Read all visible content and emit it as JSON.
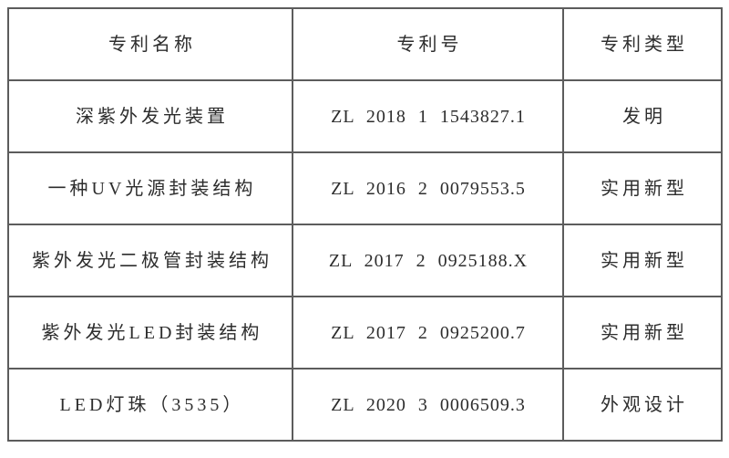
{
  "table": {
    "colors": {
      "grid": "#5c5c5c",
      "text": "#2d2d2d",
      "background": "#ffffff"
    },
    "headers": [
      "专利名称",
      "专利号",
      "专利类型"
    ],
    "rows": [
      {
        "name": "深紫外发光装置",
        "number": "ZL 2018 1 1543827.1",
        "type": "发明"
      },
      {
        "name": "一种UV光源封装结构",
        "number": "ZL 2016 2 0079553.5",
        "type": "实用新型"
      },
      {
        "name": "紫外发光二极管封装结构",
        "number": "ZL 2017 2 0925188.X",
        "type": "实用新型"
      },
      {
        "name": "紫外发光LED封装结构",
        "number": "ZL 2017 2 0925200.7",
        "type": "实用新型"
      },
      {
        "name": "LED灯珠（3535）",
        "number": "ZL 2020 3 0006509.3",
        "type": "外观设计"
      }
    ]
  }
}
